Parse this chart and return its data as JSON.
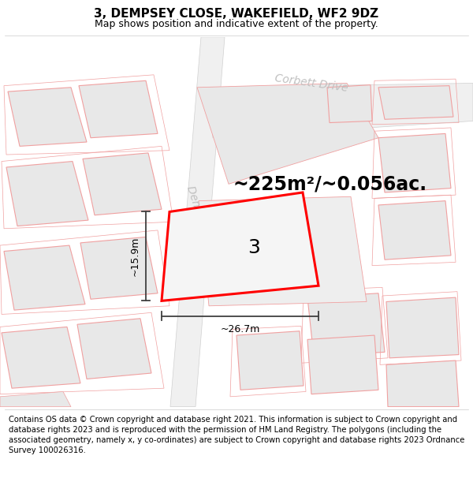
{
  "title": "3, DEMPSEY CLOSE, WAKEFIELD, WF2 9DZ",
  "subtitle": "Map shows position and indicative extent of the property.",
  "footer": "Contains OS data © Crown copyright and database right 2021. This information is subject to Crown copyright and database rights 2023 and is reproduced with the permission of HM Land Registry. The polygons (including the associated geometry, namely x, y co-ordinates) are subject to Crown copyright and database rights 2023 Ordnance Survey 100026316.",
  "area_text": "~225m²/~0.056ac.",
  "number_label": "3",
  "width_label": "~26.7m",
  "height_label": "~15.9m",
  "map_bg": "#ffffff",
  "plot_fill": "#f5f5f5",
  "plot_edge": "#ff0000",
  "building_fill": "#e8e8e8",
  "building_edge": "#f0a0a0",
  "road_fill": "#f0f0f0",
  "title_fontsize": 11,
  "subtitle_fontsize": 9,
  "footer_fontsize": 7.2,
  "area_fontsize": 17,
  "number_fontsize": 18,
  "label_fontsize": 9,
  "road_label_color": "#c0c0c0",
  "road_label_fontsize": 10,
  "dim_color": "#404040"
}
